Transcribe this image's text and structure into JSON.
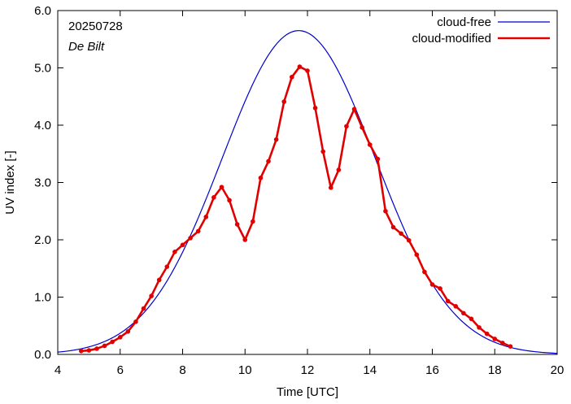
{
  "chart_data": {
    "type": "line",
    "date_label": "20250728",
    "location_label": "De Bilt",
    "xlabel": "Time  [UTC]",
    "ylabel": "UV index  [-]",
    "xlim": [
      4,
      20
    ],
    "ylim": [
      0,
      6
    ],
    "xticks": [
      4,
      6,
      8,
      10,
      12,
      14,
      16,
      18,
      20
    ],
    "xtick_labels": [
      "4",
      "6",
      "8",
      "10",
      "12",
      "14",
      "16",
      "18",
      "20"
    ],
    "yticks": [
      0,
      1,
      2,
      3,
      4,
      5,
      6
    ],
    "ytick_labels": [
      "0.0",
      "1.0",
      "2.0",
      "3.0",
      "4.0",
      "5.0",
      "6.0"
    ],
    "grid": false,
    "legend_position": "top-right",
    "series": [
      {
        "name": "cloud-free",
        "color": "#0000cc",
        "style": "line",
        "peak_x": 11.72,
        "peak_y": 5.65,
        "sigma": 2.45,
        "x": [
          4.0,
          4.5,
          5.0,
          5.5,
          6.0,
          6.5,
          7.0,
          7.5,
          8.0,
          8.5,
          9.0,
          9.5,
          10.0,
          10.5,
          11.0,
          11.5,
          11.72,
          12.0,
          12.5,
          13.0,
          13.5,
          14.0,
          14.5,
          15.0,
          15.5,
          16.0,
          16.5,
          17.0,
          17.5,
          18.0,
          18.5,
          19.0,
          19.5,
          20.0
        ]
      },
      {
        "name": "cloud-modified",
        "color": "#e00000",
        "style": "line+markers",
        "x": [
          4.75,
          5.0,
          5.25,
          5.5,
          5.75,
          6.0,
          6.25,
          6.5,
          6.75,
          7.0,
          7.25,
          7.5,
          7.75,
          8.0,
          8.25,
          8.5,
          8.75,
          9.0,
          9.25,
          9.5,
          9.75,
          10.0,
          10.25,
          10.5,
          10.75,
          11.0,
          11.25,
          11.5,
          11.75,
          12.0,
          12.25,
          12.5,
          12.75,
          13.0,
          13.25,
          13.5,
          13.75,
          14.0,
          14.25,
          14.5,
          14.75,
          15.0,
          15.25,
          15.5,
          15.75,
          16.0,
          16.25,
          16.5,
          16.75,
          17.0,
          17.25,
          17.5,
          17.75,
          18.0,
          18.25,
          18.5
        ],
        "values": [
          0.06,
          0.07,
          0.1,
          0.15,
          0.22,
          0.3,
          0.4,
          0.57,
          0.8,
          1.02,
          1.3,
          1.53,
          1.79,
          1.91,
          2.03,
          2.15,
          2.4,
          2.74,
          2.92,
          2.69,
          2.27,
          2.0,
          2.32,
          3.08,
          3.37,
          3.75,
          4.41,
          4.84,
          5.02,
          4.95,
          4.3,
          3.54,
          2.91,
          3.22,
          3.98,
          4.28,
          3.96,
          3.66,
          3.41,
          2.5,
          2.22,
          2.11,
          1.99,
          1.74,
          1.44,
          1.22,
          1.15,
          0.93,
          0.84,
          0.72,
          0.62,
          0.47,
          0.36,
          0.27,
          0.2,
          0.14
        ]
      }
    ]
  }
}
